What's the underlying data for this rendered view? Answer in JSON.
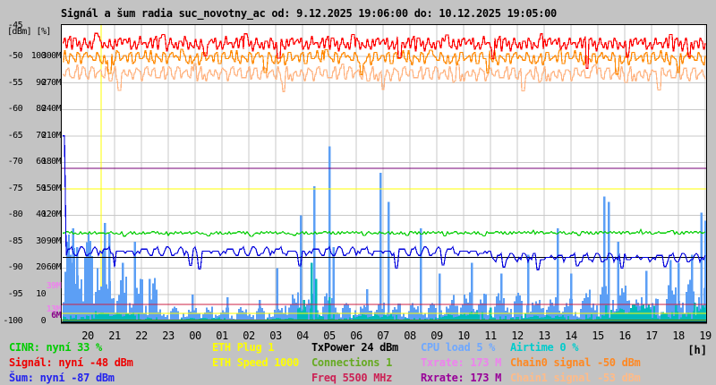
{
  "title": {
    "text": "Signál a šum radia suc_novotny_ac od: 9.12.2025 19:06:00 do: 10.12.2025 19:05:00"
  },
  "y_axis": {
    "unit_label": "[dBm] [%]",
    "top_label": "-45",
    "rows": [
      {
        "dbm": "-50",
        "pct": "100",
        "rate": "300M"
      },
      {
        "dbm": "-55",
        "pct": "90",
        "rate": "270M"
      },
      {
        "dbm": "-60",
        "pct": "80",
        "rate": "240M"
      },
      {
        "dbm": "-65",
        "pct": "70",
        "rate": "210M"
      },
      {
        "dbm": "-70",
        "pct": "60",
        "rate": "180M"
      },
      {
        "dbm": "-75",
        "pct": "50",
        "rate": "150M"
      },
      {
        "dbm": "-80",
        "pct": "40",
        "rate": "120M"
      },
      {
        "dbm": "-85",
        "pct": "30",
        "rate": "90M"
      },
      {
        "dbm": "-90",
        "pct": "20",
        "rate": "60M"
      },
      {
        "dbm": "-95",
        "pct": "10",
        "rate": ""
      },
      {
        "dbm": "-100",
        "pct": "0",
        "rate": ""
      }
    ],
    "extra_labels": [
      {
        "text": "39M",
        "color": "#ee82ee",
        "rate_value": 39
      },
      {
        "text": "13M",
        "color": "#ee82ee",
        "rate_value": 13
      },
      {
        "text": "6M",
        "color": "#8b008b",
        "rate_value": 6
      }
    ]
  },
  "x_axis": {
    "labels": [
      "20",
      "21",
      "22",
      "23",
      "00",
      "01",
      "02",
      "03",
      "04",
      "05",
      "06",
      "07",
      "08",
      "09",
      "10",
      "11",
      "12",
      "13",
      "14",
      "15",
      "16",
      "17",
      "18",
      "19"
    ],
    "unit": "[h]"
  },
  "legend": {
    "items": [
      {
        "name": "cinr-current",
        "text": "CINR: nyní 33 %",
        "color": "#00cc00",
        "col": 0,
        "row": 0
      },
      {
        "name": "signal-current",
        "text": "Signál: nyní -48 dBm",
        "color": "#ee0000",
        "col": 0,
        "row": 1
      },
      {
        "name": "noise-current",
        "text": "Šum: nyní -87 dBm",
        "color": "#2222ee",
        "col": 0,
        "row": 2
      },
      {
        "name": "eth-plug",
        "text": "ETH Plug 1",
        "color": "#ffff00",
        "col": 1,
        "row": 0
      },
      {
        "name": "eth-speed",
        "text": "ETH Speed 1000",
        "color": "#ffff00",
        "col": 1,
        "row": 1
      },
      {
        "name": "txpower",
        "text": "TxPower 24 dBm",
        "color": "#000000",
        "col": 2,
        "row": 0
      },
      {
        "name": "connections",
        "text": "Connections 1",
        "color": "#66aa22",
        "col": 2,
        "row": 1
      },
      {
        "name": "freq",
        "text": "Freq 5500 MHz",
        "color": "#cc2255",
        "col": 2,
        "row": 2
      },
      {
        "name": "cpu-load",
        "text": "CPU load 5 %",
        "color": "#6fa8ff",
        "col": 3,
        "row": 0
      },
      {
        "name": "txrate",
        "text": "Txrate: 173 M",
        "color": "#ee82ee",
        "col": 3,
        "row": 1
      },
      {
        "name": "rxrate",
        "text": "Rxrate: 173 M",
        "color": "#990099",
        "col": 3,
        "row": 2
      },
      {
        "name": "airtime",
        "text": "Airtime 0 %",
        "color": "#00cccc",
        "col": 4,
        "row": 0
      },
      {
        "name": "chain0-signal",
        "text": "Chain0 signal -50 dBm",
        "color": "#ff8822",
        "col": 4,
        "row": 1
      },
      {
        "name": "chain1-signal",
        "text": "Chain1 signal -53 dBm",
        "color": "#ffbb88",
        "col": 4,
        "row": 2
      }
    ]
  },
  "chart_data": {
    "type": "line",
    "title": "Signál a šum radia suc_novotny_ac",
    "time_from": "9.12.2025 19:06:00",
    "time_to": "10.12.2025 19:05:00",
    "axes": {
      "dbm": {
        "min": -100,
        "max": -45
      },
      "pct": {
        "min": 0,
        "max": 100
      },
      "rate": {
        "min": 0,
        "max": 300,
        "unit": "Mbit"
      }
    },
    "x_hours": {
      "start": 19.05,
      "end": 43.05,
      "tick_step": 1
    },
    "noise": [
      0.62,
      0.18,
      0.85,
      0.4,
      0.95,
      0.3,
      0.72,
      0.1,
      0.55,
      0.88,
      0.25,
      0.66,
      0.05,
      0.77,
      0.45,
      0.92,
      0.33,
      0.6,
      0.14,
      0.81,
      0.5,
      0.97,
      0.22,
      0.68,
      0.08,
      0.58,
      0.36,
      0.9,
      0.47,
      0.75,
      0.02,
      0.64,
      0.29,
      0.83,
      0.12,
      0.53,
      0.99,
      0.41,
      0.7,
      0.2,
      0.87,
      0.35,
      0.57,
      0.04,
      0.93,
      0.26,
      0.74,
      0.48
    ],
    "bars": [
      {
        "name": "CPU load",
        "axis": "pct",
        "color": "#5c9ff5",
        "segments": [
          [
            19.03,
            20.6,
            20,
            14
          ],
          [
            20.6,
            22.6,
            9,
            8
          ],
          [
            22.6,
            27.3,
            3,
            2.5
          ],
          [
            27.3,
            29.3,
            6,
            5
          ],
          [
            29.3,
            33.5,
            4,
            3
          ],
          [
            33.5,
            36.5,
            6,
            5
          ],
          [
            36.5,
            38.5,
            5,
            4
          ],
          [
            38.5,
            40.2,
            8,
            7
          ],
          [
            40.2,
            41.5,
            5,
            4
          ],
          [
            41.5,
            43.05,
            9,
            7
          ]
        ],
        "spikes": [
          [
            19.25,
            30
          ],
          [
            19.45,
            35
          ],
          [
            19.6,
            28
          ],
          [
            20.1,
            24
          ],
          [
            20.63,
            37
          ],
          [
            20.8,
            33
          ],
          [
            21.3,
            22
          ],
          [
            21.75,
            30
          ],
          [
            22.3,
            16
          ],
          [
            23.9,
            10
          ],
          [
            25.2,
            9
          ],
          [
            26.4,
            8
          ],
          [
            27.05,
            20
          ],
          [
            27.93,
            40
          ],
          [
            28.43,
            51
          ],
          [
            29.0,
            66
          ],
          [
            29.15,
            28
          ],
          [
            30.4,
            12
          ],
          [
            30.9,
            56
          ],
          [
            31.2,
            45
          ],
          [
            32.4,
            35
          ],
          [
            33.1,
            18
          ],
          [
            34.3,
            22
          ],
          [
            35.4,
            18
          ],
          [
            36.4,
            25
          ],
          [
            37.5,
            35
          ],
          [
            38.0,
            18
          ],
          [
            39.23,
            47
          ],
          [
            39.4,
            45
          ],
          [
            39.75,
            30
          ],
          [
            40.8,
            19
          ],
          [
            41.7,
            23
          ],
          [
            42.0,
            22
          ],
          [
            42.5,
            25
          ],
          [
            42.85,
            41
          ],
          [
            43.0,
            38
          ]
        ]
      },
      {
        "name": "Airtime",
        "axis": "pct",
        "color": "#00b9b9",
        "segments": [
          [
            19.03,
            20.6,
            2.2,
            2.2
          ],
          [
            20.6,
            22.6,
            1.5,
            1.8
          ],
          [
            22.6,
            27.8,
            0.5,
            0.8
          ],
          [
            27.8,
            29.3,
            2.5,
            3
          ],
          [
            29.3,
            34.0,
            1.2,
            1.4
          ],
          [
            34.0,
            36.3,
            1.8,
            2
          ],
          [
            36.3,
            38.5,
            1.0,
            1.2
          ],
          [
            38.5,
            40.2,
            2.5,
            2.5
          ],
          [
            40.2,
            43.05,
            3.5,
            3
          ]
        ],
        "spikes": [
          [
            28.05,
            8
          ],
          [
            28.33,
            22
          ],
          [
            28.5,
            16
          ],
          [
            29.0,
            9
          ],
          [
            35.0,
            5
          ],
          [
            39.3,
            6
          ],
          [
            41.9,
            6
          ],
          [
            42.6,
            7
          ],
          [
            42.9,
            6
          ]
        ]
      }
    ],
    "series": [
      {
        "name": "Chain1 signal",
        "axis": "dbm",
        "color": "#ffb380",
        "base": [
          [
            19.0,
            -53.2
          ],
          [
            43.1,
            -53.4
          ]
        ],
        "jitter": 1.5,
        "quant": 0.3,
        "step": 1,
        "spikes": [
          [
            21.2,
            -56.4
          ],
          [
            24.0,
            -51.3
          ],
          [
            27.3,
            -56.6
          ],
          [
            29.5,
            -51.4
          ],
          [
            31.0,
            -56.2
          ],
          [
            33.8,
            -51.5
          ],
          [
            36.2,
            -56.5
          ],
          [
            38.9,
            -51.6
          ],
          [
            41.3,
            -56.3
          ]
        ]
      },
      {
        "name": "Chain0 signal",
        "axis": "dbm",
        "color": "#ff8800",
        "base": [
          [
            19.0,
            -50.2
          ],
          [
            43.1,
            -50.3
          ]
        ],
        "jitter": 1.3,
        "quant": 0.3,
        "step": 1,
        "spikes": [
          [
            20.8,
            -53.2
          ],
          [
            23.5,
            -48.6
          ],
          [
            26.6,
            -53.0
          ],
          [
            28.9,
            -48.7
          ],
          [
            30.2,
            -53.4
          ],
          [
            32.8,
            -48.8
          ],
          [
            34.9,
            -53.1
          ],
          [
            37.6,
            -48.8
          ],
          [
            39.7,
            -53.3
          ],
          [
            42.0,
            -53.0
          ]
        ]
      },
      {
        "name": "Signál",
        "axis": "dbm",
        "color": "#ff0000",
        "base": [
          [
            19.0,
            -47.5
          ],
          [
            43.1,
            -47.6
          ]
        ],
        "jitter": 1.3,
        "quant": 0.3,
        "step": 1,
        "spikes": [
          [
            20.3,
            -45.6
          ],
          [
            22.8,
            -45.8
          ],
          [
            24.4,
            -49.9
          ],
          [
            25.9,
            -45.7
          ],
          [
            27.1,
            -50.3
          ],
          [
            29.9,
            -45.8
          ],
          [
            31.6,
            -50.2
          ],
          [
            33.4,
            -45.9
          ],
          [
            35.1,
            -50.4
          ],
          [
            36.9,
            -45.7
          ],
          [
            38.6,
            -52.2
          ],
          [
            40.1,
            -50.1
          ],
          [
            41.7,
            -45.8
          ],
          [
            42.4,
            -50.0
          ]
        ]
      },
      {
        "name": "CINR",
        "axis": "pct",
        "color": "#00cc00",
        "base": [
          [
            19.0,
            33.2
          ],
          [
            43.1,
            33.4
          ]
        ],
        "jitter": 0.55,
        "quant": 0.45,
        "step": 2,
        "spikes": [
          [
            21.4,
            32.1
          ],
          [
            23.0,
            32.3
          ],
          [
            24.5,
            32.2
          ],
          [
            26.1,
            32.0
          ],
          [
            27.7,
            32.4
          ],
          [
            30.3,
            32.3
          ],
          [
            31.9,
            32.3
          ],
          [
            33.3,
            32.2
          ],
          [
            34.8,
            32.2
          ],
          [
            36.6,
            34.3
          ],
          [
            38.3,
            32.4
          ],
          [
            40.6,
            34.6
          ],
          [
            41.8,
            34.2
          ]
        ]
      },
      {
        "name": "TxPower",
        "axis": "pct",
        "color": "#000000",
        "base": [
          [
            19.0,
            24
          ],
          [
            43.1,
            24
          ]
        ],
        "jitter": 0,
        "quant": 0,
        "step": 4,
        "spikes": []
      },
      {
        "name": "Šum",
        "axis": "dbm",
        "color": "#0000dd",
        "base": [
          [
            19.0,
            -86.9
          ],
          [
            34.5,
            -86.9
          ],
          [
            35.2,
            -87.9
          ],
          [
            43.1,
            -88.1
          ]
        ],
        "jitter": 0.85,
        "quant": 0.4,
        "step": 2,
        "spikes": [
          [
            19.08,
            -65
          ],
          [
            21.0,
            -89.8
          ],
          [
            23.8,
            -89.5
          ],
          [
            24.15,
            -90.2
          ],
          [
            27.9,
            -89.6
          ],
          [
            31.5,
            -90.0
          ],
          [
            33.2,
            -89.4
          ],
          [
            35.5,
            -89.8
          ],
          [
            36.8,
            -90.3
          ],
          [
            38.2,
            -89.6
          ],
          [
            39.9,
            -90.0
          ],
          [
            41.5,
            -89.7
          ]
        ]
      }
    ],
    "hrules": [
      {
        "label": "ETH Speed",
        "axis": "rate",
        "value": 150,
        "color": "#ffff00"
      },
      {
        "label": "Rxrate",
        "axis": "rate",
        "value": 173,
        "color": "#770077"
      },
      {
        "label": "Freq",
        "axis": "rate",
        "value": 19,
        "color": "#cc2244"
      },
      {
        "label": "ETH Plug",
        "axis": "rate",
        "value": 8.6,
        "color": "#ffff00"
      },
      {
        "label": "Connections",
        "axis": "rate",
        "value": 1,
        "color": "#6b8000"
      }
    ],
    "vlines": [
      {
        "hour": 20.5,
        "color": "#ffff00"
      }
    ]
  }
}
